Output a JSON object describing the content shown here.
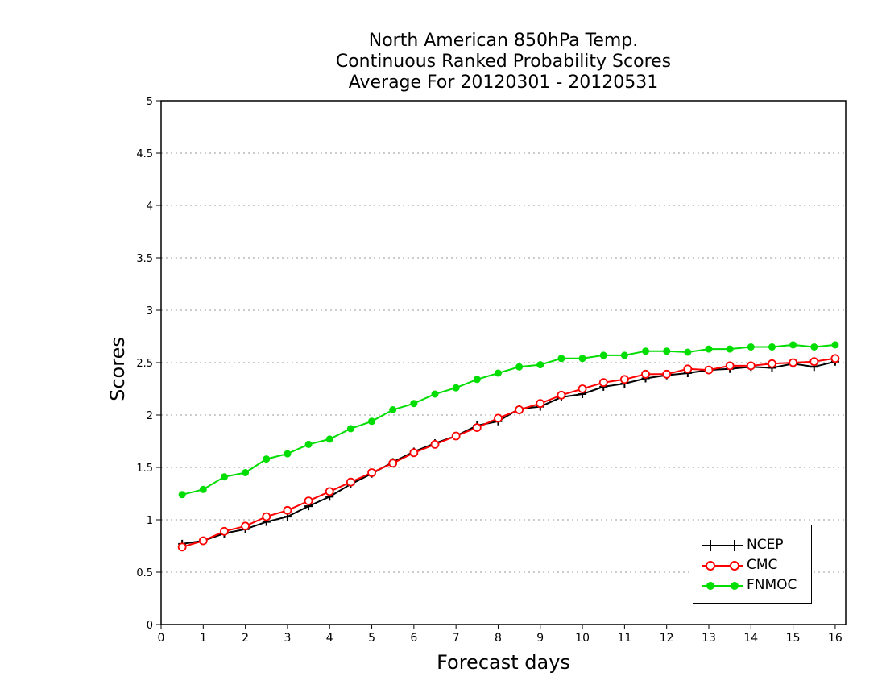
{
  "chart_data": {
    "type": "line",
    "title": [
      "North American 850hPa Temp.",
      "Continuous Ranked Probability Scores",
      "Average For 20120301 - 20120531"
    ],
    "xlabel": "Forecast days",
    "ylabel": "Scores",
    "xlim": [
      0,
      16.25
    ],
    "ylim": [
      0,
      5
    ],
    "xticks": [
      0,
      1,
      2,
      3,
      4,
      5,
      6,
      7,
      8,
      9,
      10,
      11,
      12,
      13,
      14,
      15,
      16
    ],
    "yticks": [
      0,
      0.5,
      1,
      1.5,
      2,
      2.5,
      3,
      3.5,
      4,
      4.5,
      5
    ],
    "ytick_labels": [
      "0",
      "0.5",
      "1",
      "1.5",
      "2",
      "2.5",
      "3",
      "3.5",
      "4",
      "4.5",
      "5"
    ],
    "grid": "horizontal dotted",
    "legend_position": "bottom-right",
    "x": [
      0.5,
      1,
      1.5,
      2,
      2.5,
      3,
      3.5,
      4,
      4.5,
      5,
      5.5,
      6,
      6.5,
      7,
      7.5,
      8,
      8.5,
      9,
      9.5,
      10,
      10.5,
      11,
      11.5,
      12,
      12.5,
      13,
      13.5,
      14,
      14.5,
      15,
      15.5,
      16
    ],
    "series": [
      {
        "name": "NCEP",
        "color": "#000000",
        "marker": "plus",
        "values": [
          0.77,
          0.8,
          0.87,
          0.91,
          0.98,
          1.03,
          1.13,
          1.22,
          1.34,
          1.44,
          1.55,
          1.65,
          1.73,
          1.8,
          1.9,
          1.94,
          2.06,
          2.08,
          2.17,
          2.2,
          2.27,
          2.3,
          2.35,
          2.38,
          2.4,
          2.43,
          2.44,
          2.46,
          2.45,
          2.49,
          2.46,
          2.51
        ]
      },
      {
        "name": "CMC",
        "color": "#ff0000",
        "marker": "open-circle",
        "values": [
          0.74,
          0.8,
          0.89,
          0.94,
          1.03,
          1.09,
          1.18,
          1.27,
          1.36,
          1.45,
          1.54,
          1.64,
          1.72,
          1.8,
          1.88,
          1.97,
          2.05,
          2.11,
          2.19,
          2.25,
          2.31,
          2.34,
          2.39,
          2.39,
          2.44,
          2.43,
          2.47,
          2.47,
          2.49,
          2.5,
          2.51,
          2.54
        ]
      },
      {
        "name": "FNMOC",
        "color": "#00dd00",
        "marker": "filled-circle",
        "values": [
          1.24,
          1.29,
          1.41,
          1.45,
          1.58,
          1.63,
          1.72,
          1.77,
          1.87,
          1.94,
          2.05,
          2.11,
          2.2,
          2.26,
          2.34,
          2.4,
          2.46,
          2.48,
          2.54,
          2.54,
          2.57,
          2.57,
          2.61,
          2.61,
          2.6,
          2.63,
          2.63,
          2.65,
          2.65,
          2.67,
          2.65,
          2.67
        ]
      }
    ]
  }
}
